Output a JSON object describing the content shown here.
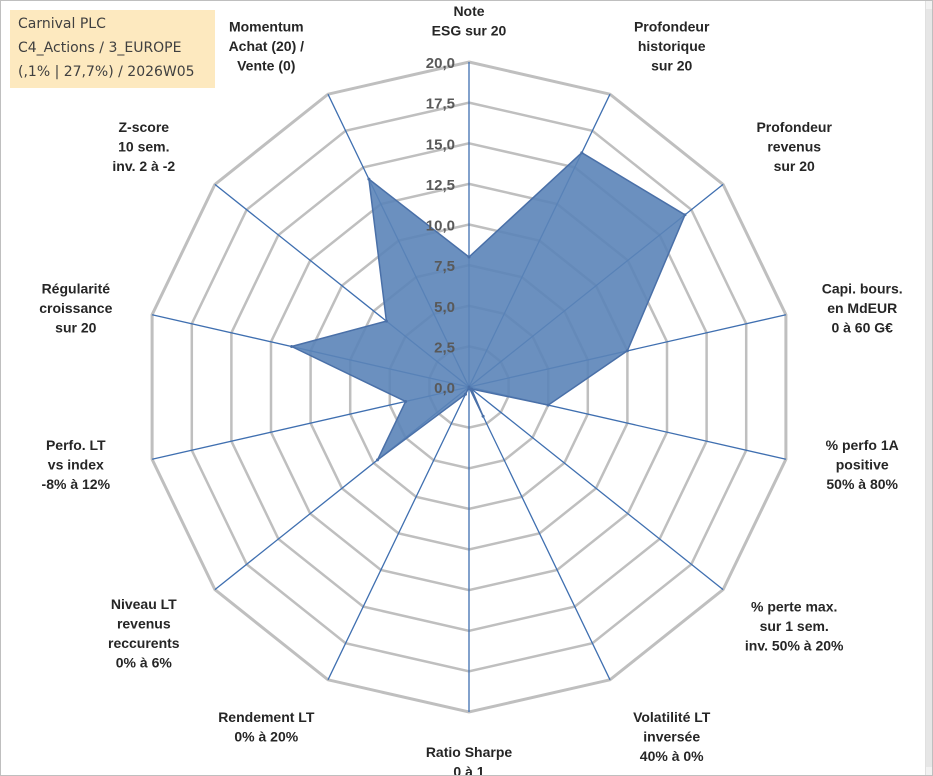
{
  "header": {
    "line1": "Carnival PLC",
    "line2": "C4_Actions / 3_EUROPE",
    "line3": "(,1% | 27,7%) / 2026W05"
  },
  "colors": {
    "fill": "#5b84b8",
    "stroke": "#4a70a8",
    "axis": "#3f6fb0",
    "grid": "#bfbfbf",
    "header_bg": "#fde9bf"
  },
  "chart_data": {
    "type": "radar",
    "range": [
      0,
      20
    ],
    "tick_step": 2.5,
    "tick_labels": [
      "0,0",
      "2,5",
      "5,0",
      "7,5",
      "10,0",
      "12,5",
      "15,0",
      "17,5",
      "20,0"
    ],
    "axes": [
      {
        "lines": [
          "Note",
          "ESG sur 20"
        ]
      },
      {
        "lines": [
          "Profondeur",
          "historique",
          "sur 20"
        ]
      },
      {
        "lines": [
          "Profondeur",
          "revenus",
          "sur 20"
        ]
      },
      {
        "lines": [
          "Capi. bours.",
          "en MdEUR",
          "0 à 60 G€"
        ]
      },
      {
        "lines": [
          "% perfo 1A",
          "positive",
          "50% à 80%"
        ]
      },
      {
        "lines": [
          "% perte max.",
          "sur 1 sem.",
          "inv. 50% à 20%"
        ]
      },
      {
        "lines": [
          "Volatilité LT",
          "inversée",
          "40% à 0%"
        ]
      },
      {
        "lines": [
          "Ratio Sharpe",
          "0 à 1"
        ]
      },
      {
        "lines": [
          "Rendement LT",
          "0% à 20%"
        ]
      },
      {
        "lines": [
          "Niveau LT",
          "revenus",
          "reccurents",
          "0% à 6%"
        ]
      },
      {
        "lines": [
          "Perfo. LT",
          "vs index",
          "-8% à 12%"
        ]
      },
      {
        "lines": [
          "Régularité",
          "croissance",
          "sur 20"
        ]
      },
      {
        "lines": [
          "Z-score",
          "10 sem.",
          "inv. 2 à -2"
        ]
      },
      {
        "lines": [
          "Momentum",
          "Achat (20) /",
          "Vente (0)"
        ]
      }
    ],
    "values": [
      8.0,
      16.0,
      17.0,
      10.0,
      5.0,
      0.2,
      2.0,
      0.0,
      0.5,
      7.2,
      4.0,
      11.2,
      6.5,
      14.2
    ]
  }
}
